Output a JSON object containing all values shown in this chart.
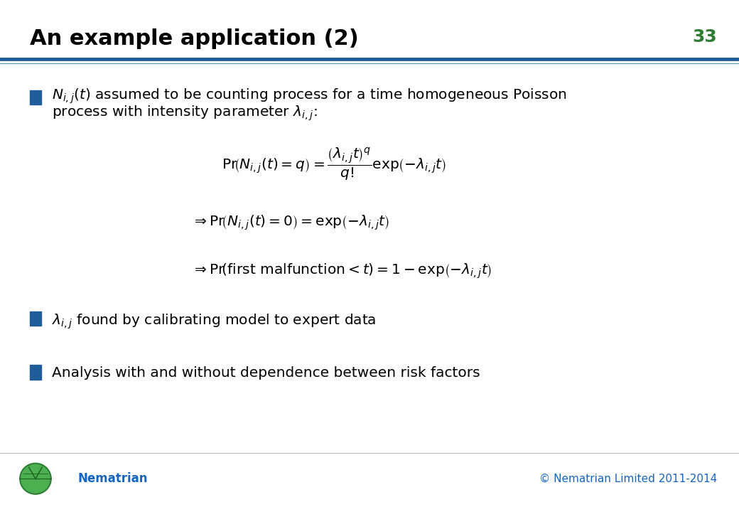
{
  "title": "An example application (2)",
  "slide_number": "33",
  "title_color": "#000000",
  "slide_number_color": "#2E7D32",
  "title_font_size": 22,
  "header_line_color_thick": "#1F5C99",
  "header_line_color_thin": "#4A90C4",
  "bullet_color": "#1F5C99",
  "text_color": "#000000",
  "footer_text_left": "Nematrian",
  "footer_text_right": "© Nematrian Limited 2011-2014",
  "footer_color": "#1565C0",
  "background_color": "#ffffff"
}
